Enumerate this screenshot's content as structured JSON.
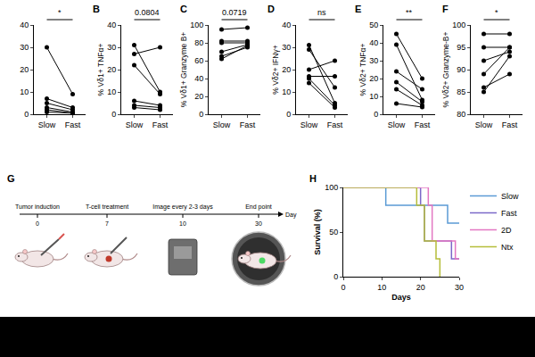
{
  "chart_data": [
    {
      "type": "paired",
      "categories": [
        "Slow",
        "Fast"
      ],
      "color": "#000000",
      "marker": "circle",
      "values": [
        [
          30,
          9
        ],
        [
          7,
          3
        ],
        [
          5,
          2
        ],
        [
          3,
          1
        ],
        [
          2,
          0.5
        ],
        [
          1,
          0.5
        ]
      ],
      "ylim": [
        0,
        40
      ],
      "yticks": [
        0,
        10,
        20,
        30,
        40
      ],
      "annotation": "*"
    },
    {
      "type": "paired",
      "letter": "B",
      "y_label": "% Vδ1+ TNFα+",
      "categories": [
        "Slow",
        "Fast"
      ],
      "color": "#000000",
      "marker": "circle",
      "values": [
        [
          31,
          10
        ],
        [
          27,
          30
        ],
        [
          22,
          9
        ],
        [
          6,
          4
        ],
        [
          4,
          3
        ],
        [
          3,
          2
        ]
      ],
      "ylim": [
        0,
        40
      ],
      "yticks": [
        0,
        10,
        20,
        30,
        40
      ],
      "annotation": "0.0804"
    },
    {
      "type": "paired",
      "letter": "C",
      "y_label": "% Vδ1+ Granzyme B+",
      "categories": [
        "Slow",
        "Fast"
      ],
      "color": "#000000",
      "marker": "circle",
      "values": [
        [
          95,
          97
        ],
        [
          82,
          82
        ],
        [
          80,
          80
        ],
        [
          70,
          78
        ],
        [
          65,
          75
        ],
        [
          62,
          77
        ]
      ],
      "ylim": [
        0,
        100
      ],
      "yticks": [
        0,
        20,
        40,
        60,
        80,
        100
      ],
      "annotation": "0.0719"
    },
    {
      "type": "paired",
      "letter": "D",
      "y_label": "% Vδ2+ IFNγ+",
      "categories": [
        "Slow",
        "Fast"
      ],
      "color": "#000000",
      "marker": "circle",
      "values": [
        [
          31,
          5
        ],
        [
          29,
          12
        ],
        [
          20,
          24
        ],
        [
          17,
          17
        ],
        [
          16,
          4
        ],
        [
          14,
          3
        ]
      ],
      "ylim": [
        0,
        40
      ],
      "yticks": [
        0,
        10,
        20,
        30,
        40
      ],
      "annotation": "ns"
    },
    {
      "type": "paired",
      "letter": "E",
      "y_label": "% Vδ2+ TNFα+",
      "categories": [
        "Slow",
        "Fast"
      ],
      "color": "#000000",
      "marker": "circle",
      "values": [
        [
          45,
          20
        ],
        [
          39,
          8
        ],
        [
          24,
          14
        ],
        [
          18,
          7
        ],
        [
          14,
          5
        ],
        [
          6,
          4
        ]
      ],
      "ylim": [
        0,
        50
      ],
      "yticks": [
        0,
        10,
        20,
        30,
        40,
        50
      ],
      "annotation": "**"
    },
    {
      "type": "paired",
      "letter": "F",
      "y_label": "% Vδ2+ Granzyme-B+",
      "categories": [
        "Slow",
        "Fast"
      ],
      "color": "#000000",
      "marker": "circle",
      "values": [
        [
          98,
          98
        ],
        [
          95,
          95
        ],
        [
          92,
          94
        ],
        [
          89,
          95
        ],
        [
          86,
          89
        ],
        [
          85,
          93
        ]
      ],
      "ylim": [
        80,
        100
      ],
      "yticks": [
        80,
        85,
        90,
        95,
        100
      ],
      "annotation": "*"
    },
    {
      "type": "step",
      "letter": "H",
      "x_label": "Days",
      "y_label": "Survival (%)",
      "xlim": [
        0,
        30
      ],
      "xticks": [
        0,
        10,
        20,
        30
      ],
      "ylim": [
        0,
        100
      ],
      "yticks": [
        0,
        50,
        100
      ],
      "legend": "right",
      "series": [
        {
          "name": "Slow",
          "color": "#5b9bd5",
          "line_style": "solid",
          "x": [
            0,
            11,
            27,
            30
          ],
          "values": [
            100,
            80,
            60,
            60
          ]
        },
        {
          "name": "Fast",
          "color": "#7b68c8",
          "line_style": "solid",
          "x": [
            0,
            20,
            21,
            28,
            30
          ],
          "values": [
            100,
            80,
            40,
            20,
            20
          ]
        },
        {
          "name": "2D",
          "color": "#e377c2",
          "line_style": "solid",
          "x": [
            0,
            22,
            23,
            29,
            30
          ],
          "values": [
            100,
            80,
            40,
            20,
            20
          ]
        },
        {
          "name": "Ntx",
          "color": "#b5bd3a",
          "line_style": "solid",
          "x": [
            0,
            19,
            21,
            24,
            25
          ],
          "values": [
            100,
            80,
            40,
            20,
            0
          ]
        }
      ]
    }
  ],
  "diagram": {
    "letter": "G",
    "axis_label": "Day",
    "events": [
      {
        "label": "Tumor induction",
        "day": 0
      },
      {
        "label": "T-cell treatment",
        "day": 7
      },
      {
        "label": "Image every 2-3 days",
        "day": 10
      },
      {
        "label": "End point",
        "day": 30
      }
    ]
  }
}
